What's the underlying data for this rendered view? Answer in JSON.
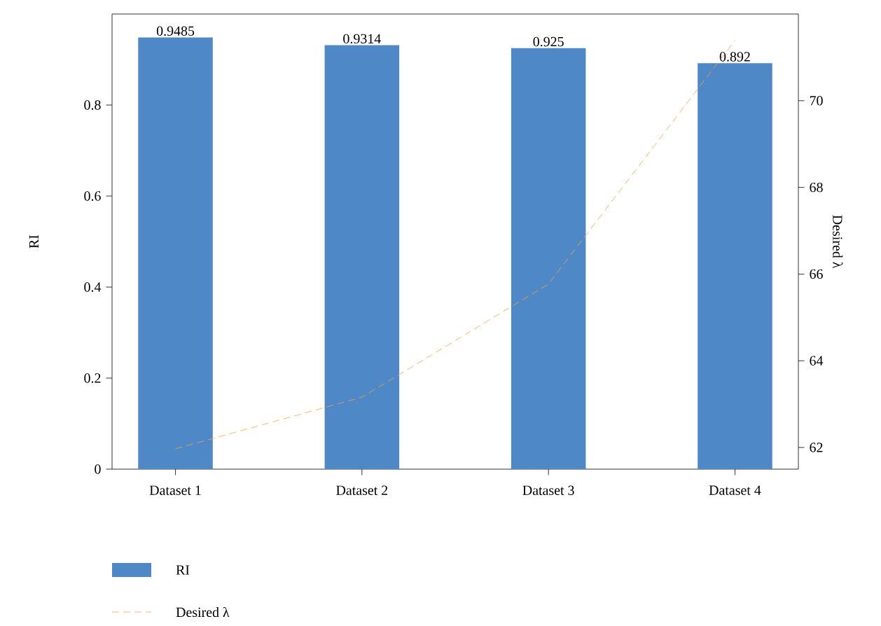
{
  "chart_data": {
    "type": "bar",
    "ylabel": "RI",
    "y2label": "Desired λ",
    "categories": [
      "Dataset 1",
      "Dataset 2",
      "Dataset 3",
      "Dataset 4"
    ],
    "series": [
      {
        "name": "RI",
        "color": "#4f88c6",
        "values": [
          0.9485,
          0.9314,
          0.925,
          0.892
        ],
        "value_labels": [
          "0.9485",
          "0.9314",
          "0.925",
          "0.892"
        ]
      },
      {
        "name": "Desired λ",
        "type": "line",
        "axis": "y2",
        "color": "#ffa630",
        "line_style": "dashed",
        "values": [
          61.97,
          63.16,
          65.77,
          71.39
        ]
      }
    ],
    "ylim": [
      0,
      1.0
    ],
    "yticks": [
      0,
      0.2,
      0.4,
      0.6,
      0.8
    ],
    "y2lim": [
      61.5,
      72.0
    ],
    "y2ticks": [
      62,
      64,
      66,
      68,
      70
    ],
    "legend": "bottom",
    "grid": false
  }
}
